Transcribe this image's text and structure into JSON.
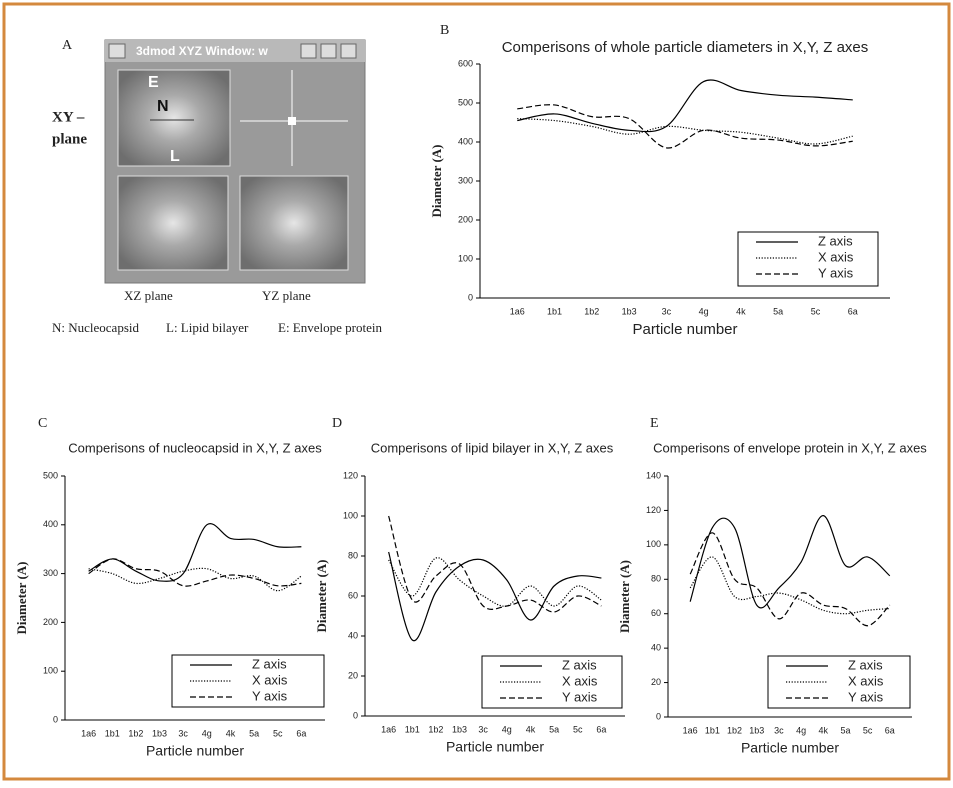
{
  "panel_a": {
    "label": "A",
    "window_title": "3dmod XYZ Window: w",
    "plane_label": [
      "XY –",
      "plane"
    ],
    "markers": [
      "E",
      "N",
      "L"
    ],
    "xz": "XZ plane",
    "yz": "YZ plane",
    "key": [
      "N: Nucleocapsid",
      "L: Lipid bilayer",
      "E: Envelope protein"
    ]
  },
  "chart_data": [
    {
      "panel": "B",
      "type": "line",
      "title": "Comperisons of whole particle diameters in X,Y, Z axes",
      "xlabel": "Particle number",
      "ylabel": "Diameter (A)",
      "categories": [
        "1a6",
        "1b1",
        "1b2",
        "1b3",
        "3c",
        "4g",
        "4k",
        "5a",
        "5c",
        "6a"
      ],
      "series": [
        {
          "name": "Z axis",
          "color": "#000000",
          "style": "solid",
          "values": [
            455,
            472,
            448,
            430,
            440,
            555,
            532,
            520,
            515,
            508
          ]
        },
        {
          "name": "X axis",
          "color": "#000000",
          "style": "dotted",
          "values": [
            460,
            455,
            440,
            420,
            440,
            430,
            425,
            410,
            395,
            415
          ]
        },
        {
          "name": "Y axis",
          "color": "#000000",
          "style": "dashed",
          "values": [
            485,
            495,
            465,
            460,
            385,
            430,
            410,
            405,
            390,
            402
          ]
        }
      ],
      "ylim": [
        0,
        600
      ],
      "yticks": [
        0,
        100,
        200,
        300,
        400,
        500,
        600
      ]
    },
    {
      "panel": "C",
      "type": "line",
      "title": "Comperisons of nucleocapsid in X,Y, Z axes",
      "xlabel": "Particle number",
      "ylabel": "Diameter (A)",
      "categories": [
        "1a6",
        "1b1",
        "1b2",
        "1b3",
        "3c",
        "4g",
        "4k",
        "5a",
        "5c",
        "6a"
      ],
      "series": [
        {
          "name": "Z axis",
          "color": "#000000",
          "style": "solid",
          "values": [
            305,
            330,
            305,
            285,
            300,
            400,
            372,
            370,
            355,
            355
          ]
        },
        {
          "name": "X axis",
          "color": "#000000",
          "style": "dotted",
          "values": [
            310,
            300,
            280,
            290,
            305,
            310,
            290,
            295,
            265,
            295
          ]
        },
        {
          "name": "Y axis",
          "color": "#000000",
          "style": "dashed",
          "values": [
            300,
            330,
            310,
            305,
            275,
            285,
            297,
            290,
            275,
            280
          ]
        }
      ],
      "ylim": [
        0,
        500
      ],
      "yticks": [
        0,
        100,
        200,
        300,
        400,
        500
      ]
    },
    {
      "panel": "D",
      "type": "line",
      "title": "Comperisons of lipid bilayer in X,Y, Z axes",
      "xlabel": "Particle number",
      "ylabel": "Diameter (A)",
      "categories": [
        "1a6",
        "1b1",
        "1b2",
        "1b3",
        "3c",
        "4g",
        "4k",
        "5a",
        "5c",
        "6a"
      ],
      "series": [
        {
          "name": "Z axis",
          "color": "#000000",
          "style": "solid",
          "values": [
            82,
            38,
            62,
            75,
            78,
            68,
            48,
            65,
            70,
            69
          ]
        },
        {
          "name": "X axis",
          "color": "#000000",
          "style": "dotted",
          "values": [
            78,
            60,
            79,
            68,
            60,
            55,
            65,
            55,
            65,
            58
          ]
        },
        {
          "name": "Y axis",
          "color": "#000000",
          "style": "dashed",
          "values": [
            100,
            58,
            70,
            76,
            55,
            55,
            58,
            52,
            60,
            55
          ]
        }
      ],
      "ylim": [
        0,
        120
      ],
      "yticks": [
        0,
        20,
        40,
        60,
        80,
        100,
        120
      ]
    },
    {
      "panel": "E",
      "type": "line",
      "title": "Comperisons of envelope protein in X,Y, Z axes",
      "xlabel": "Particle number",
      "ylabel": "Diameter (A)",
      "categories": [
        "1a6",
        "1b1",
        "1b2",
        "1b3",
        "3c",
        "4g",
        "4k",
        "5a",
        "5c",
        "6a"
      ],
      "series": [
        {
          "name": "Z axis",
          "color": "#000000",
          "style": "solid",
          "values": [
            67,
            110,
            110,
            65,
            75,
            90,
            117,
            88,
            93,
            82
          ]
        },
        {
          "name": "X axis",
          "color": "#000000",
          "style": "dotted",
          "values": [
            75,
            93,
            70,
            70,
            72,
            68,
            62,
            60,
            62,
            63
          ]
        },
        {
          "name": "Y axis",
          "color": "#000000",
          "style": "dashed",
          "values": [
            83,
            107,
            80,
            75,
            57,
            72,
            65,
            63,
            53,
            65
          ]
        }
      ],
      "ylim": [
        0,
        140
      ],
      "yticks": [
        0,
        20,
        40,
        60,
        80,
        100,
        120,
        140
      ]
    }
  ]
}
